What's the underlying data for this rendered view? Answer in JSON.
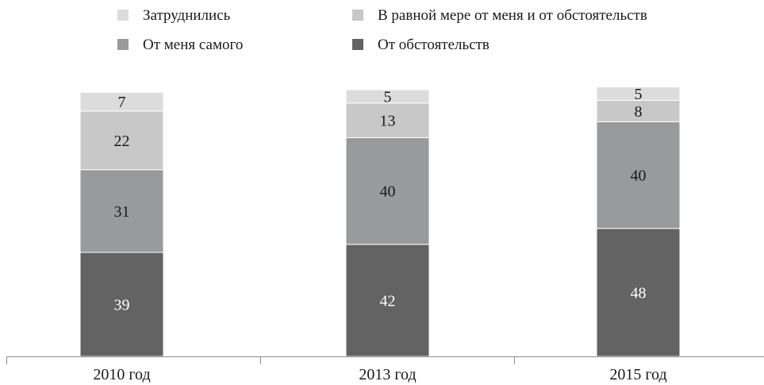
{
  "chart_data": {
    "type": "bar",
    "stacked": true,
    "categories": [
      "2010 год",
      "2013 год",
      "2015 год"
    ],
    "series": [
      {
        "name": "От обстоятельств",
        "values": [
          39,
          42,
          48
        ],
        "color": "#636363"
      },
      {
        "name": "От меня самого",
        "values": [
          31,
          40,
          40
        ],
        "color": "#999a9c"
      },
      {
        "name": "В равной мере от меня и от обстоятельств",
        "values": [
          22,
          13,
          8
        ],
        "color": "#c8c8c8"
      },
      {
        "name": "Затруднились",
        "values": [
          7,
          5,
          5
        ],
        "color": "#dcdcdc"
      }
    ],
    "legend": {
      "placement": "top",
      "order": [
        "Затруднились",
        "В равной мере от меня и от обстоятельств",
        "От меня самого",
        "От обстоятельств"
      ]
    },
    "ylim": [
      0,
      100
    ],
    "grid": false,
    "label_colors": {
      "dark": "#ffffff",
      "light": "#1a1a1a"
    }
  }
}
